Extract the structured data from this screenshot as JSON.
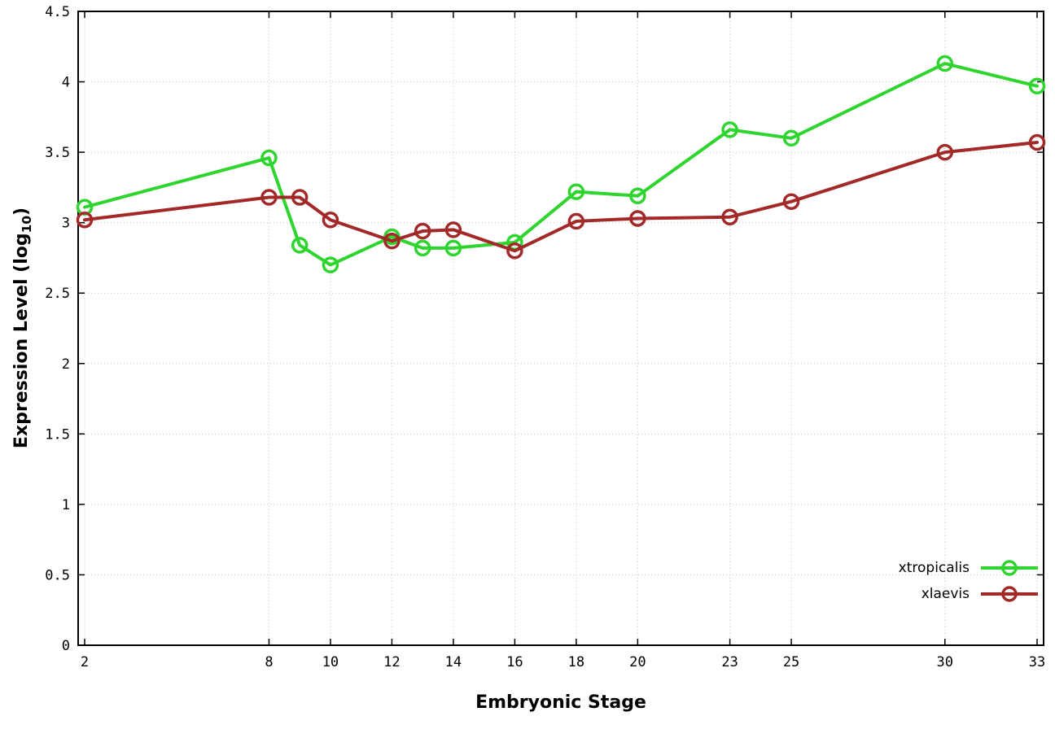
{
  "axes": {
    "x": {
      "label": "Embryonic Stage"
    },
    "y": {
      "label_prefix": "Expression Level (log",
      "label_sub": "10",
      "label_suffix": ")"
    }
  },
  "chart_data": {
    "type": "line",
    "title": "",
    "xlabel": "Embryonic Stage",
    "ylabel": "Expression Level (log10)",
    "grid": true,
    "legend_position": "bottom-right",
    "xlim": [
      2,
      33
    ],
    "ylim": [
      0,
      4.5
    ],
    "x": [
      2,
      8,
      9,
      10,
      12,
      13,
      14,
      16,
      18,
      20,
      23,
      25,
      30,
      33
    ],
    "xticks": [
      2,
      8,
      10,
      12,
      14,
      16,
      18,
      20,
      23,
      25,
      30,
      33
    ],
    "xtick_labels": [
      "2",
      "8",
      "10",
      "12",
      "14",
      "16",
      "18",
      "20",
      "23",
      "25",
      "30",
      "33"
    ],
    "yticks": [
      0,
      0.5,
      1,
      1.5,
      2,
      2.5,
      3,
      3.5,
      4,
      4.5
    ],
    "ytick_labels": [
      "0",
      "0.5",
      "1",
      "1.5",
      "2",
      "2.5",
      "3",
      "3.5",
      "4",
      "4.5"
    ],
    "series": [
      {
        "name": "xtropicalis",
        "color": "#2ed52e",
        "values": [
          3.11,
          3.46,
          2.84,
          2.7,
          2.9,
          2.82,
          2.82,
          2.86,
          3.22,
          3.19,
          3.66,
          3.6,
          4.13,
          3.97
        ]
      },
      {
        "name": "xlaevis",
        "color": "#a32929",
        "values": [
          3.02,
          3.18,
          3.18,
          3.02,
          2.87,
          2.94,
          2.95,
          2.8,
          3.01,
          3.03,
          3.04,
          3.15,
          3.5,
          3.57
        ]
      }
    ]
  }
}
